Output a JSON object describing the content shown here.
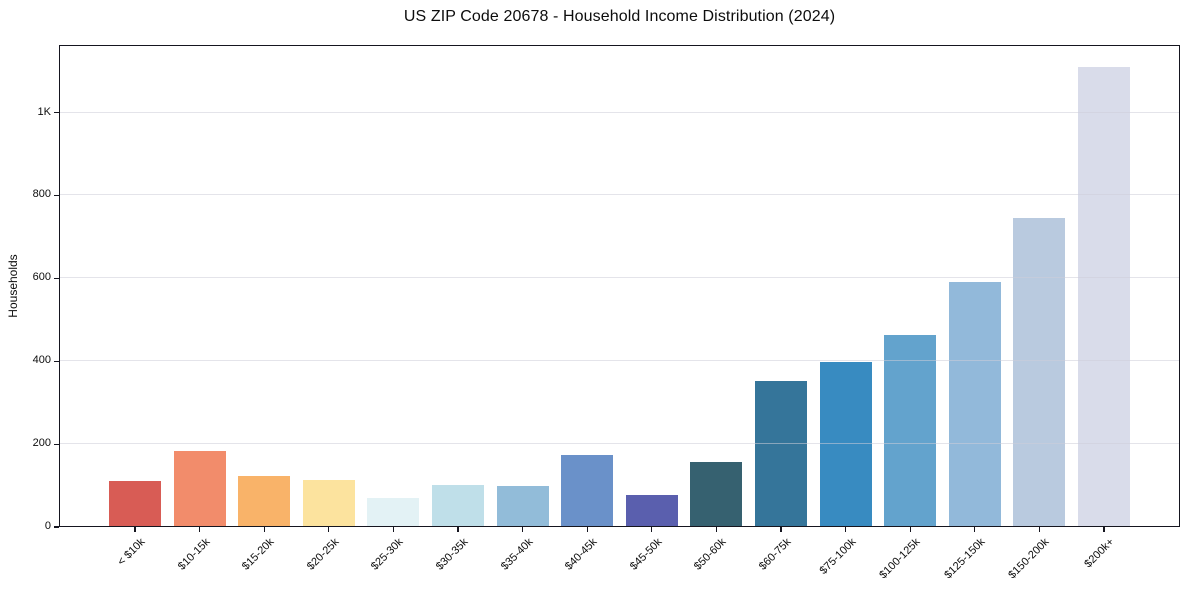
{
  "page": {
    "background_color": "#ffffff",
    "text_color": "#0d0d0d",
    "axis_color": "#15151f",
    "gridline_color": "#d5d5de"
  },
  "chart_data": {
    "type": "bar",
    "title": "US ZIP Code 20678 - Household Income Distribution (2024)",
    "xlabel": "",
    "ylabel": "Households",
    "categories": [
      "< $10k",
      "$10-15k",
      "$15-20k",
      "$20-25k",
      "$25-30k",
      "$30-35k",
      "$35-40k",
      "$40-45k",
      "$45-50k",
      "$50-60k",
      "$60-75k",
      "$75-100k",
      "$100-125k",
      "$125-150k",
      "$150-200k",
      "$200k+"
    ],
    "values": [
      110,
      183,
      124,
      113,
      71,
      102,
      99,
      173,
      78,
      156,
      352,
      399,
      464,
      591,
      745,
      1110
    ],
    "bar_colors": [
      "#d85c55",
      "#f28c6b",
      "#f9b369",
      "#fce39e",
      "#e3f2f5",
      "#bfdfe9",
      "#92bcd9",
      "#6a91c9",
      "#5a5fae",
      "#366170",
      "#35759a",
      "#388bc1",
      "#63a3cd",
      "#92b9da",
      "#b9cadf",
      "#d9dcea"
    ],
    "ylim": [
      0,
      1163
    ],
    "yticks": {
      "values": [
        0,
        200,
        400,
        600,
        800,
        1000
      ],
      "labels": [
        "0",
        "200",
        "400",
        "600",
        "800",
        "1K"
      ]
    },
    "grid": "horizontal",
    "grid_over_bars": true,
    "x_tick_rotation_deg": 45,
    "legend": "none"
  }
}
